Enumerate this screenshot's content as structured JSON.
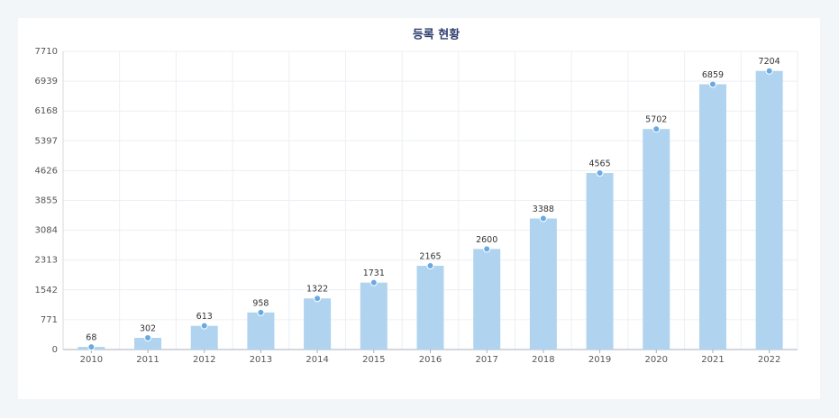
{
  "chart_data": {
    "type": "bar",
    "title": "등록 현황",
    "categories": [
      "2010",
      "2011",
      "2012",
      "2013",
      "2014",
      "2015",
      "2016",
      "2017",
      "2018",
      "2019",
      "2020",
      "2021",
      "2022"
    ],
    "values": [
      68,
      302,
      613,
      958,
      1322,
      1731,
      2165,
      2600,
      3388,
      4565,
      5702,
      6859,
      7204
    ],
    "color": "#b0d4f0",
    "marker_color": "#6aaae2",
    "ylim": [
      0,
      7710
    ],
    "yticks": [
      0,
      771,
      1542,
      2313,
      3084,
      3855,
      4626,
      5397,
      6168,
      6939,
      7710
    ],
    "grid": true
  }
}
